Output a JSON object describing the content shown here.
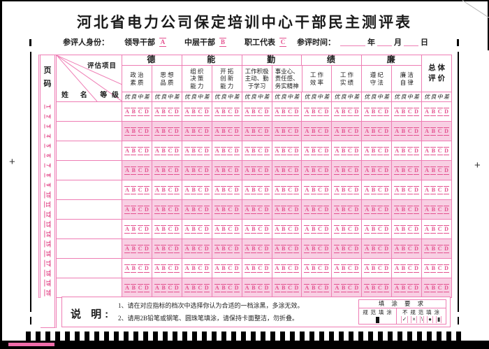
{
  "title": "河北省电力公司保定培训中心干部民主测评表",
  "identity": {
    "label": "参评人身份：",
    "options": [
      {
        "label": "领导干部",
        "bubble": "A"
      },
      {
        "label": "中层干部",
        "bubble": "B"
      },
      {
        "label": "职工代表",
        "bubble": "C"
      }
    ]
  },
  "time": {
    "label": "参评时间：",
    "units": [
      "年",
      "月",
      "日"
    ]
  },
  "table": {
    "page_col_label": "页\n码",
    "corner": {
      "project_label": "评估项目",
      "name_label": "姓 名",
      "grade_label": "等 级"
    },
    "groups": [
      {
        "label": "德",
        "subs": [
          "政 治\n素 质",
          "思 想\n品 质"
        ]
      },
      {
        "label": "能",
        "subs": [
          "组 织\n决 策\n能 力",
          "开 拓\n创 新\n能 力"
        ]
      },
      {
        "label": "勤",
        "subs": [
          "工作积极\n主动、勤\n于学习",
          "事业心、\n责任感、\n务实精神"
        ]
      },
      {
        "label": "绩",
        "subs": [
          "工 作\n效 率",
          "工 作\n实 绩"
        ]
      },
      {
        "label": "廉",
        "subs": [
          "遵 纪\n守 法",
          "廉 洁\n自 律"
        ]
      }
    ],
    "overall_label": "总 体\n评 价",
    "grade_headers": [
      "优",
      "良",
      "中",
      "差"
    ],
    "bubbles": [
      "A",
      "B",
      "C",
      "D"
    ],
    "page_numbers": [
      1,
      2,
      3,
      4,
      5,
      6,
      7,
      8,
      9,
      10,
      11,
      12,
      13,
      14,
      15,
      16,
      17,
      18,
      19,
      20
    ],
    "data_row_count": 10,
    "bubble_group_count": 11
  },
  "notes": {
    "label": "说 明:",
    "lines": [
      "1、请在对应指标的档次中选择你认为合适的一档涂黑，多涂无效。",
      "2、请用2B铅笔或钢笔、圆珠笔填涂，请保持卡面整洁，勿折叠。"
    ]
  },
  "fill_req": {
    "title": "填 涂 要 求",
    "valid_label": "规 范 填 涂",
    "invalid_label": "不 规 范 填 涂",
    "valid_mark": "▮",
    "invalid_marks": [
      "✓",
      "×",
      "\\",
      "●",
      "▮"
    ]
  },
  "deco": {
    "plus_mark": "+",
    "timing_mark_count": 45,
    "colors": {
      "line_pink": "#ee7db4",
      "bubble_pink": "#e4518f",
      "row_shade_pink": "#f8cfe3",
      "ink_black": "#1a1a1a"
    }
  }
}
